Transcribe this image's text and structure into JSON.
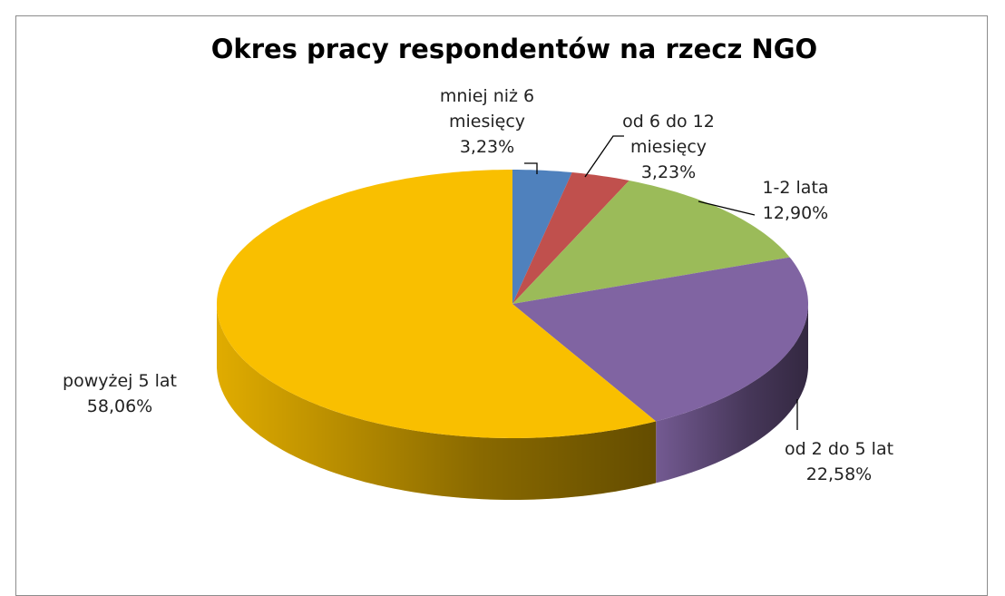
{
  "chart_data": {
    "type": "pie3d",
    "title": "Okres pracy respondentów na rzecz NGO",
    "categories": [
      "mniej niż 6 miesięcy",
      "od 6 do 12 miesięcy",
      "1-2 lata",
      "od 2 do 5 lat",
      "powyżej 5 lat"
    ],
    "values": [
      3.23,
      3.23,
      12.9,
      22.58,
      58.06
    ],
    "value_labels": [
      "3,23%",
      "3,23%",
      "12,90%",
      "22,58%",
      "58,06%"
    ],
    "colors": [
      "#4f81bd",
      "#c0504d",
      "#9bbb59",
      "#8064a2",
      "#f9bf00"
    ]
  }
}
